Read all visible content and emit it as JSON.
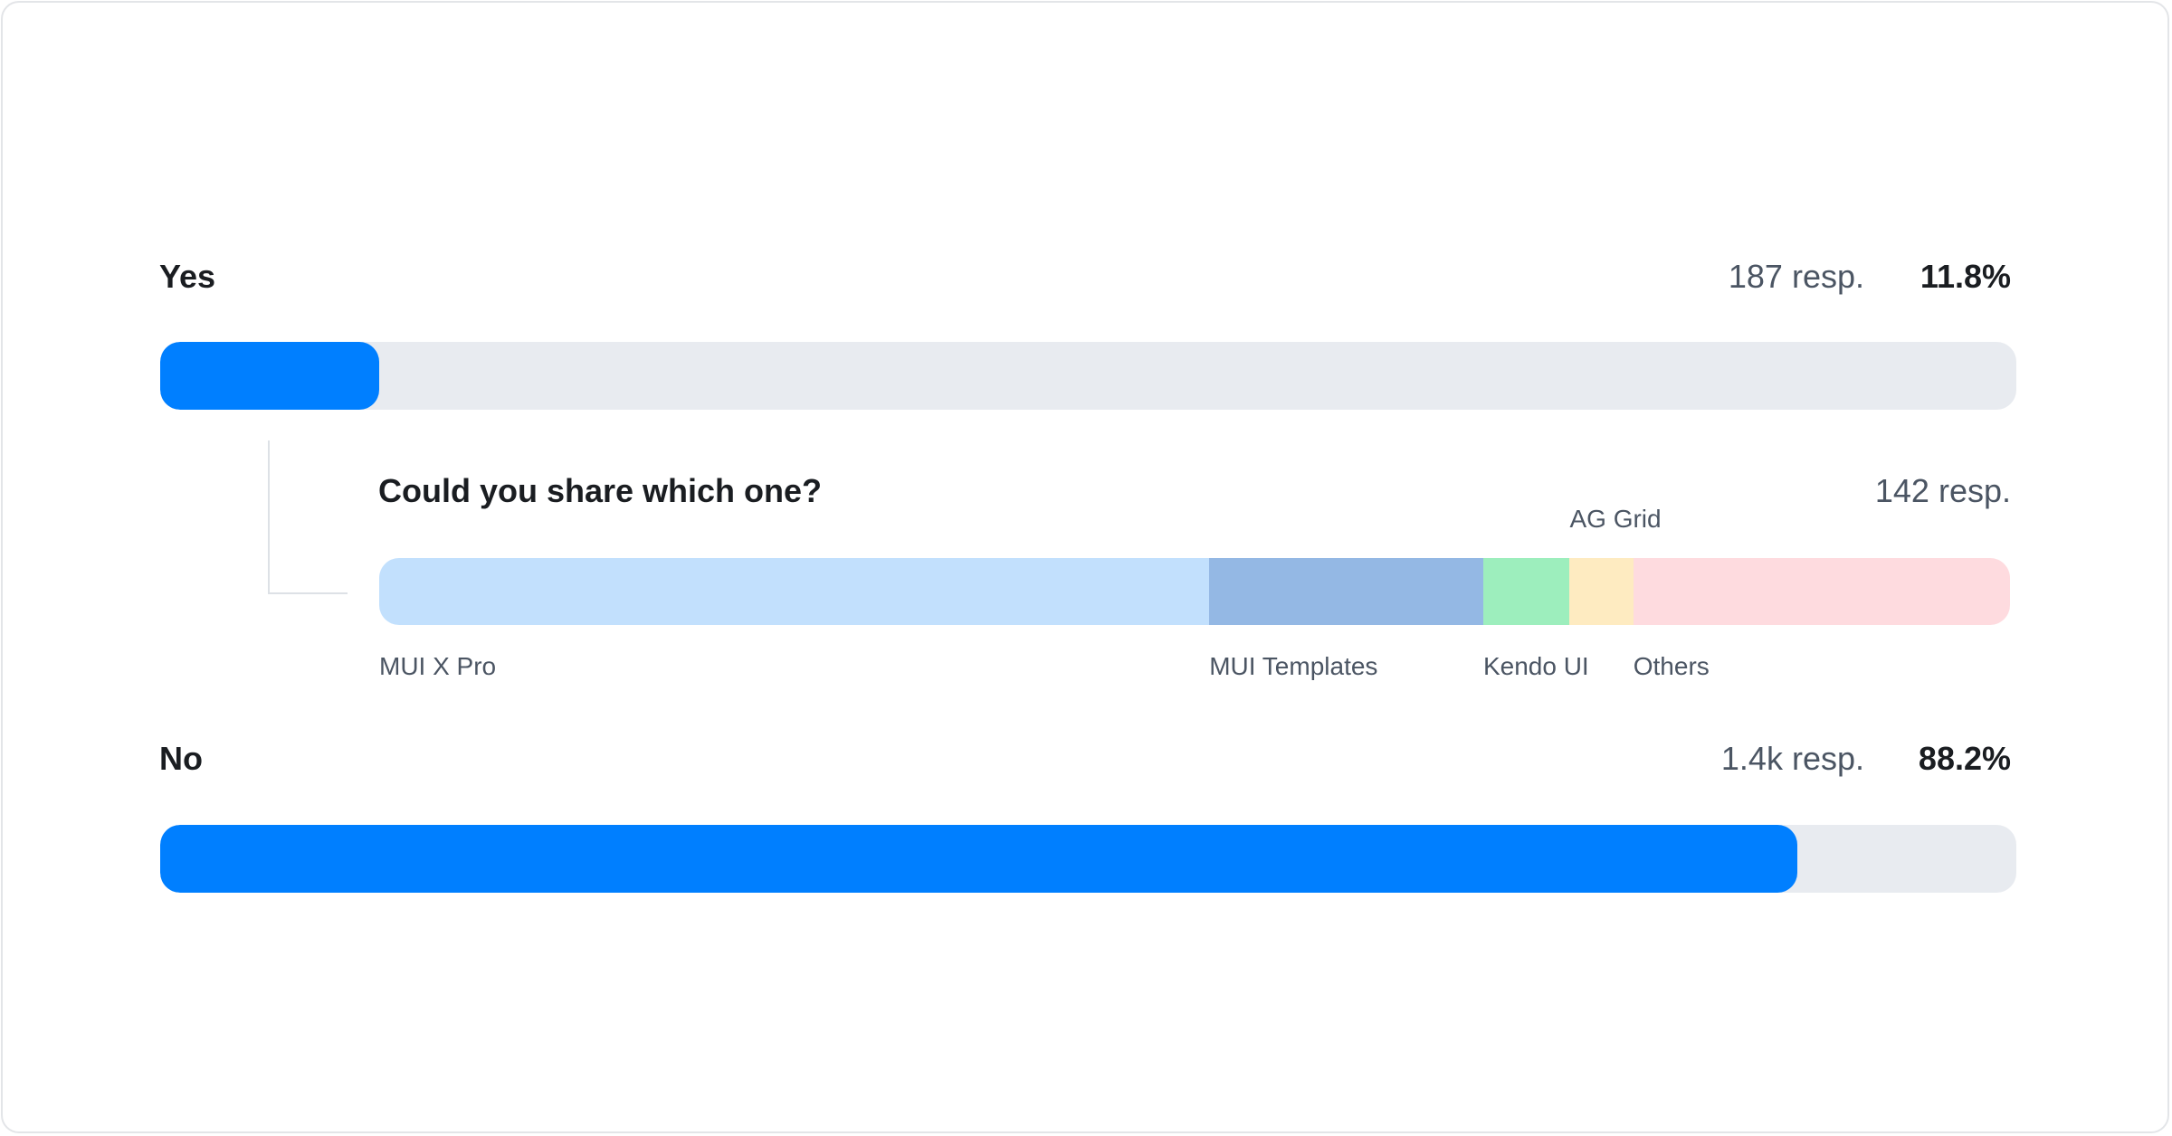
{
  "chart_data": {
    "type": "bar",
    "rows": [
      {
        "label": "Yes",
        "responses": "187 resp.",
        "percent_label": "11.8%",
        "value": 11.8
      },
      {
        "label": "No",
        "responses": "1.4k resp.",
        "percent_label": "88.2%",
        "value": 88.2
      }
    ],
    "followup": {
      "question": "Could you share which one?",
      "responses": "142 resp.",
      "segments": [
        {
          "name": "MUI X Pro",
          "share": 50.9,
          "color": "#c2e0fd"
        },
        {
          "name": "MUI Templates",
          "share": 16.8,
          "color": "#94b8e4"
        },
        {
          "name": "Kendo UI",
          "share": 5.3,
          "color": "#9deebd"
        },
        {
          "name": "AG Grid",
          "share": 3.9,
          "color": "#feebc1"
        },
        {
          "name": "Others",
          "share": 23.1,
          "color": "#fedbdf"
        }
      ]
    },
    "colors": {
      "fill": "#007fff",
      "track": "#e8ebf0"
    }
  }
}
